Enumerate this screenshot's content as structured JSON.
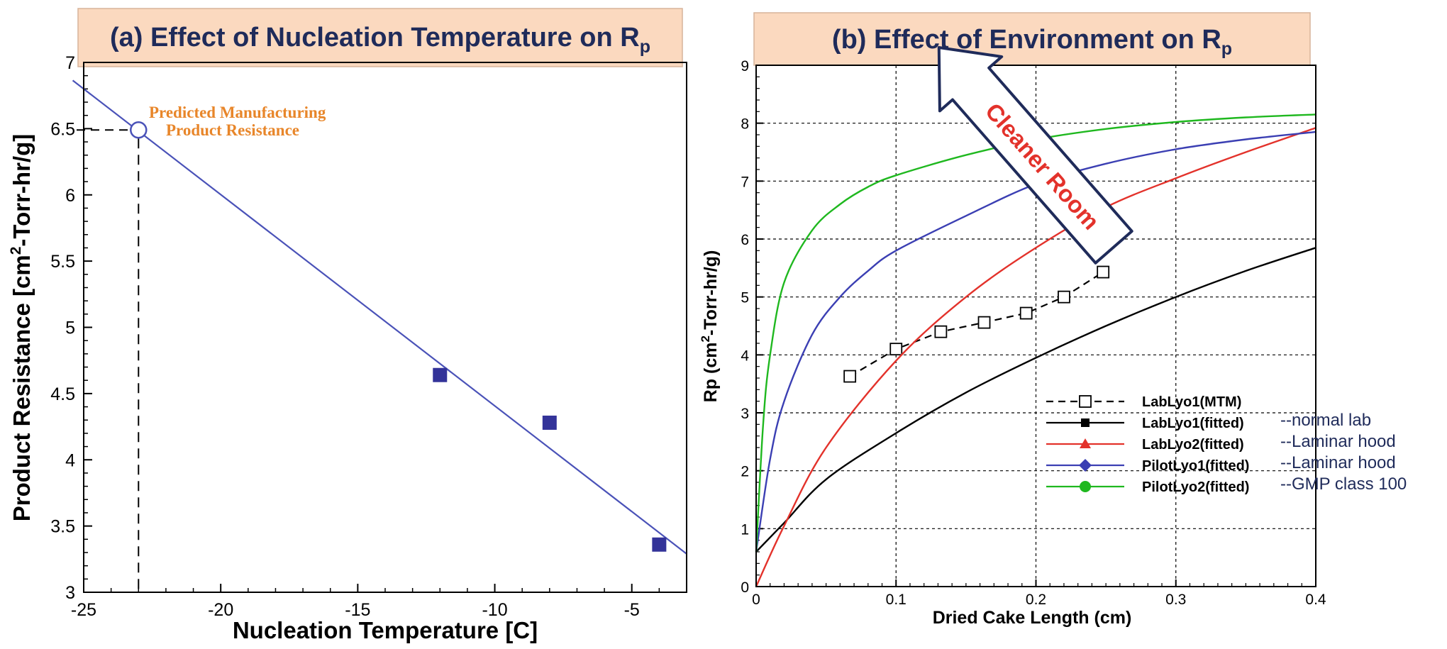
{
  "chart_data": [
    {
      "type": "scatter",
      "title": "(a) Effect of Nucleation Temperature on R",
      "title_subscript": "p",
      "xlabel": "Nucleation Temperature [C]",
      "ylabel_parts": [
        "Product Resistance [cm",
        "2",
        "-Torr-hr/g]"
      ],
      "xlim": [
        -25,
        -3
      ],
      "ylim": [
        3,
        7
      ],
      "xticks": [
        -25,
        -20,
        -15,
        -10,
        -5
      ],
      "yticks": [
        3,
        3.5,
        4,
        4.5,
        5,
        5.5,
        6,
        6.5,
        7
      ],
      "grid": false,
      "points": [
        {
          "x": -12,
          "y": 4.64
        },
        {
          "x": -8,
          "y": 4.28
        },
        {
          "x": -4,
          "y": 3.36
        }
      ],
      "fit_line": {
        "x": [
          -25,
          -3
        ],
        "y": [
          6.8,
          3.29
        ]
      },
      "predicted_point": {
        "x": -23,
        "y": 6.49
      },
      "annotation": [
        "Predicted Manufacturing",
        "Product Resistance"
      ],
      "colors": {
        "points": "#333399",
        "line": "#4a52b8",
        "annotation": "#e8862a"
      }
    },
    {
      "type": "line",
      "title": "(b) Effect of Environment on R",
      "title_subscript": "p",
      "xlabel": "Dried Cake Length (cm)",
      "ylabel_parts": [
        "Rp (cm",
        "2",
        "-Torr-hr/g)"
      ],
      "xlim": [
        0,
        0.4
      ],
      "ylim": [
        0,
        9
      ],
      "xticks": [
        0,
        0.1,
        0.2,
        0.3,
        0.4
      ],
      "xtick_labels": [
        "0",
        "0.1",
        "0.2",
        "0.3",
        "0.4"
      ],
      "yticks": [
        0,
        1,
        2,
        3,
        4,
        5,
        6,
        7,
        8,
        9
      ],
      "grid": true,
      "legend_position": "lower-right",
      "series": [
        {
          "name": "LabLyo1(MTM)",
          "note": "",
          "color": "#000000",
          "style": "dashed",
          "marker": "open-square",
          "x": [
            0.067,
            0.1,
            0.132,
            0.163,
            0.193,
            0.22,
            0.248
          ],
          "y": [
            3.63,
            4.1,
            4.4,
            4.56,
            4.72,
            5.0,
            5.43
          ]
        },
        {
          "name": "LabLyo1(fitted)",
          "note": "--normal lab",
          "color": "#000000",
          "style": "solid",
          "marker": "filled-square",
          "x": [
            0,
            0.02,
            0.05,
            0.1,
            0.15,
            0.2,
            0.25,
            0.3,
            0.35,
            0.4
          ],
          "y": [
            0.6,
            1.1,
            1.85,
            2.65,
            3.35,
            3.95,
            4.5,
            5.0,
            5.45,
            5.85
          ]
        },
        {
          "name": "LabLyo2(fitted)",
          "note": "--Laminar hood",
          "color": "#e3322b",
          "style": "solid",
          "marker": "filled-triangle",
          "x": [
            0,
            0.02,
            0.05,
            0.1,
            0.15,
            0.2,
            0.25,
            0.3,
            0.35,
            0.4
          ],
          "y": [
            0.0,
            1.05,
            2.4,
            3.9,
            5.0,
            5.85,
            6.55,
            7.05,
            7.5,
            7.92
          ]
        },
        {
          "name": "PilotLyo1(fitted)",
          "note": "--Laminar hood",
          "color": "#3b3fb3",
          "style": "solid",
          "marker": "filled-diamond",
          "x": [
            0,
            0.01,
            0.02,
            0.04,
            0.06,
            0.08,
            0.1,
            0.15,
            0.2,
            0.25,
            0.3,
            0.35,
            0.4
          ],
          "y": [
            0.6,
            2.2,
            3.2,
            4.35,
            5.0,
            5.45,
            5.8,
            6.4,
            6.95,
            7.3,
            7.55,
            7.72,
            7.85
          ]
        },
        {
          "name": "PilotLyo2(fitted)",
          "note": "--GMP class 100",
          "color": "#1fb81f",
          "style": "solid",
          "marker": "filled-circle",
          "x": [
            0,
            0.005,
            0.01,
            0.02,
            0.04,
            0.06,
            0.08,
            0.1,
            0.15,
            0.2,
            0.25,
            0.3,
            0.35,
            0.4
          ],
          "y": [
            0.6,
            2.8,
            4.0,
            5.25,
            6.15,
            6.6,
            6.9,
            7.1,
            7.45,
            7.72,
            7.9,
            8.02,
            8.1,
            8.15
          ]
        }
      ],
      "arrow_label": "Cleaner Room",
      "colors": {
        "arrow_fill": "#ffffff",
        "arrow_stroke": "#1f2b5a",
        "arrow_text": "#e3322b"
      }
    }
  ]
}
